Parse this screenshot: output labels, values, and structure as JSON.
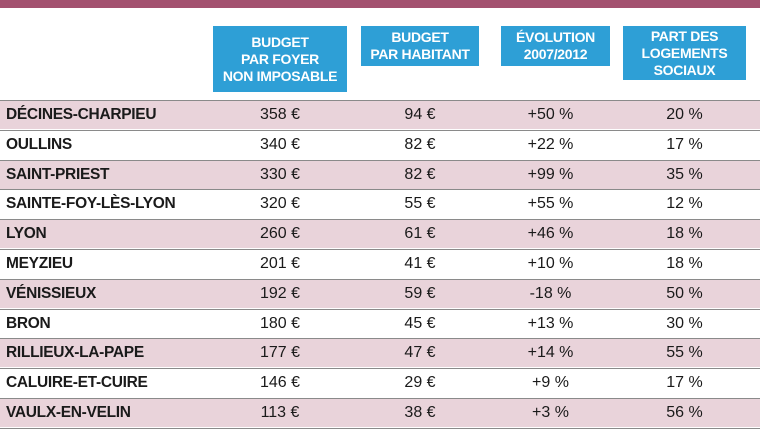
{
  "headers": [
    "BUDGET\nPAR FOYER\nNON IMPOSABLE",
    "BUDGET\nPAR HABITANT",
    "ÉVOLUTION\n2007/2012",
    "PART DES\nLOGEMENTS\nSOCIAUX"
  ],
  "rows": [
    {
      "commune": "DÉCINES-CHARPIEU",
      "budget_foyer": "358 €",
      "budget_habitant": "94 €",
      "evolution": "+50 %",
      "part_logements": "20 %"
    },
    {
      "commune": "OULLINS",
      "budget_foyer": "340 €",
      "budget_habitant": "82 €",
      "evolution": "+22 %",
      "part_logements": "17 %"
    },
    {
      "commune": "SAINT-PRIEST",
      "budget_foyer": "330 €",
      "budget_habitant": "82 €",
      "evolution": "+99 %",
      "part_logements": "35 %"
    },
    {
      "commune": "SAINTE-FOY-LÈS-LYON",
      "budget_foyer": "320 €",
      "budget_habitant": "55 €",
      "evolution": "+55 %",
      "part_logements": "12 %"
    },
    {
      "commune": "LYON",
      "budget_foyer": "260 €",
      "budget_habitant": "61 €",
      "evolution": "+46 %",
      "part_logements": "18 %"
    },
    {
      "commune": "MEYZIEU",
      "budget_foyer": "201 €",
      "budget_habitant": "41 €",
      "evolution": "+10 %",
      "part_logements": "18 %"
    },
    {
      "commune": "VÉNISSIEUX",
      "budget_foyer": "192 €",
      "budget_habitant": "59 €",
      "evolution": "-18 %",
      "part_logements": "50 %"
    },
    {
      "commune": "BRON",
      "budget_foyer": "180 €",
      "budget_habitant": "45 €",
      "evolution": "+13 %",
      "part_logements": "30 %"
    },
    {
      "commune": "RILLIEUX-LA-PAPE",
      "budget_foyer": "177 €",
      "budget_habitant": "47 €",
      "evolution": "+14 %",
      "part_logements": "55 %"
    },
    {
      "commune": "CALUIRE-ET-CUIRE",
      "budget_foyer": "146 €",
      "budget_habitant": "29 €",
      "evolution": "+9 %",
      "part_logements": "17 %"
    },
    {
      "commune": "VAULX-EN-VELIN",
      "budget_foyer": "113 €",
      "budget_habitant": "38 €",
      "evolution": "+3 %",
      "part_logements": "56 %"
    }
  ],
  "colors": {
    "header_bg": "#2e9fd6",
    "row_shade": "#e9d3da",
    "top_band": "#a3516f"
  }
}
